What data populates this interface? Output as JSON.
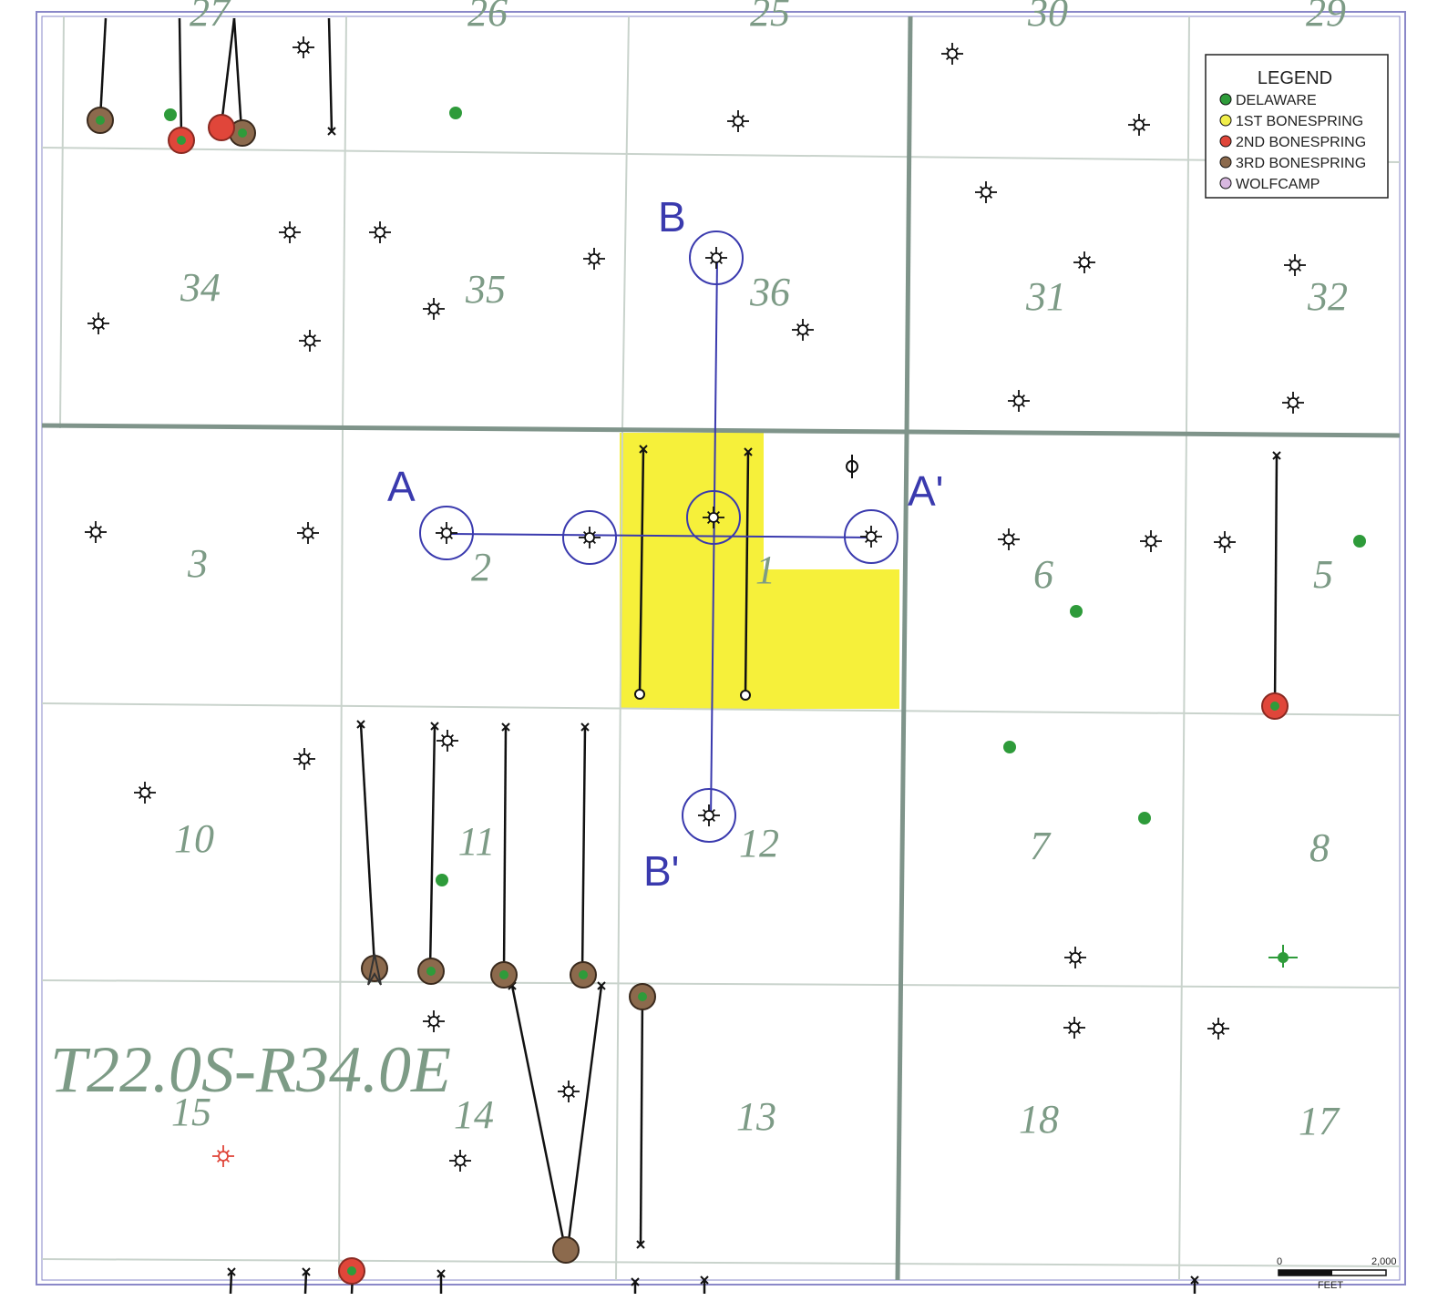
{
  "colors": {
    "section_line": "#c9d3cc",
    "township_line": "#7f948a",
    "section_number": "#7d9b86",
    "cross_section": "#3a3aae",
    "highlight": "#f6f03a",
    "delaware": "#2e9b3a",
    "first_bonespring": "#f1ee4a",
    "second_bonespring": "#e0463a",
    "third_bonespring": "#8c6a4d",
    "wolfcamp": "#d8b8e0",
    "border": "#8a88c8"
  },
  "township_label": "T22.0S-R34.0E",
  "sections": [
    {
      "id": "s27",
      "label": "27"
    },
    {
      "id": "s26",
      "label": "26"
    },
    {
      "id": "s25",
      "label": "25"
    },
    {
      "id": "s30",
      "label": "30"
    },
    {
      "id": "s29",
      "label": "29"
    },
    {
      "id": "s34",
      "label": "34"
    },
    {
      "id": "s35",
      "label": "35"
    },
    {
      "id": "s36",
      "label": "36"
    },
    {
      "id": "s31",
      "label": "31"
    },
    {
      "id": "s32",
      "label": "32"
    },
    {
      "id": "s3",
      "label": "3"
    },
    {
      "id": "s2",
      "label": "2"
    },
    {
      "id": "s1",
      "label": "1"
    },
    {
      "id": "s6",
      "label": "6"
    },
    {
      "id": "s5",
      "label": "5"
    },
    {
      "id": "s10",
      "label": "10"
    },
    {
      "id": "s11",
      "label": "11"
    },
    {
      "id": "s12",
      "label": "12"
    },
    {
      "id": "s7",
      "label": "7"
    },
    {
      "id": "s8",
      "label": "8"
    },
    {
      "id": "s15",
      "label": "15"
    },
    {
      "id": "s14",
      "label": "14"
    },
    {
      "id": "s13",
      "label": "13"
    },
    {
      "id": "s18",
      "label": "18"
    },
    {
      "id": "s17",
      "label": "17"
    }
  ],
  "cross_sections": {
    "a_start": "A",
    "a_end": "A'",
    "b_start": "B",
    "b_end": "B'"
  },
  "legend": {
    "title": "LEGEND",
    "items": [
      {
        "label": "DELAWARE",
        "color": "#2e9b3a"
      },
      {
        "label": "1ST BONESPRING",
        "color": "#f1ee4a"
      },
      {
        "label": "2ND BONESPRING",
        "color": "#e0463a"
      },
      {
        "label": "3RD BONESPRING",
        "color": "#8c6a4d"
      },
      {
        "label": "WOLFCAMP",
        "color": "#d8b8e0"
      }
    ]
  },
  "scale_bar": {
    "start_label": "0",
    "end_label": "2,000",
    "unit": "FEET"
  }
}
